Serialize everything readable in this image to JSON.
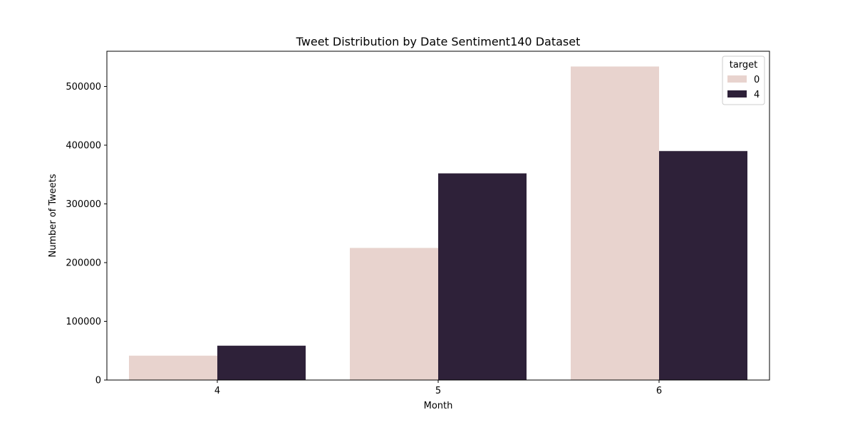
{
  "chart_data": {
    "type": "bar",
    "title": "Tweet Distribution by Date Sentiment140 Dataset",
    "xlabel": "Month",
    "ylabel": "Number of Tweets",
    "categories": [
      "4",
      "5",
      "6"
    ],
    "series": [
      {
        "name": "0",
        "color": "#e8d3ce",
        "values": [
          41500,
          225000,
          534000
        ]
      },
      {
        "name": "4",
        "color": "#2e2139",
        "values": [
          58500,
          352000,
          390000
        ]
      }
    ],
    "ylim": [
      0,
      560000
    ],
    "yticks": [
      0,
      100000,
      200000,
      300000,
      400000,
      500000
    ],
    "legend": {
      "title": "target",
      "position": "top-right"
    },
    "grid": false
  }
}
